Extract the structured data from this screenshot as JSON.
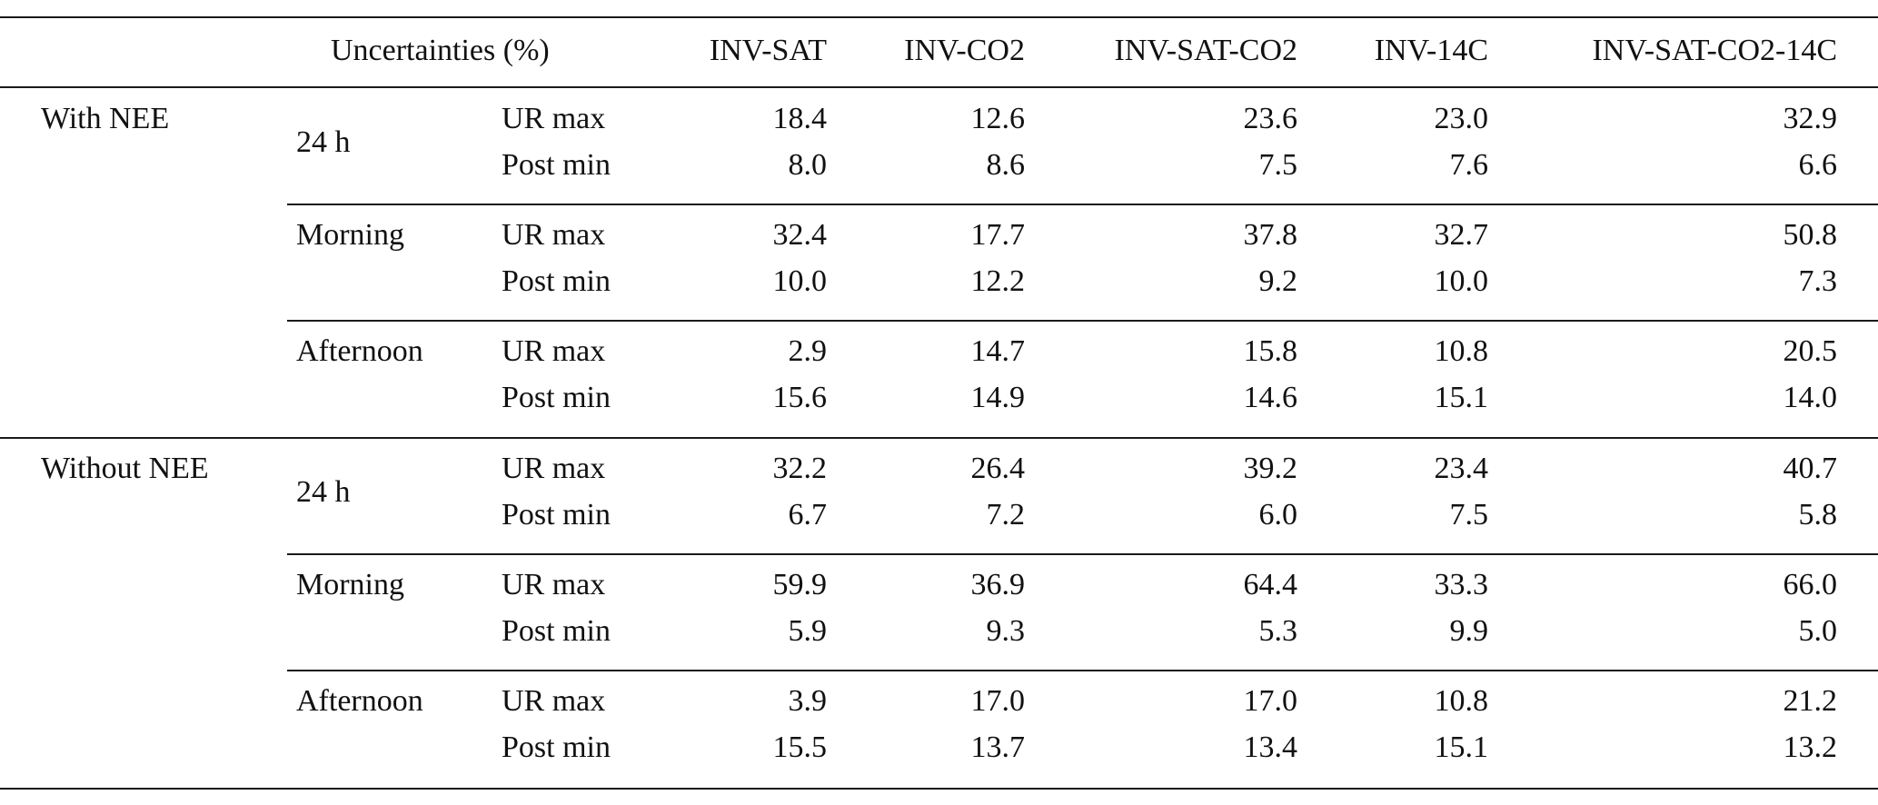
{
  "header": {
    "uncertainties": "Uncertainties (%)",
    "columns": [
      "INV-SAT",
      "INV-CO2",
      "INV-SAT-CO2",
      "INV-14C",
      "INV-SAT-CO2-14C"
    ]
  },
  "groups": [
    {
      "label": "With NEE",
      "periods": [
        {
          "label": "24 h",
          "rows": [
            {
              "metric": "UR max",
              "values": [
                "18.4",
                "12.6",
                "23.6",
                "23.0",
                "32.9"
              ]
            },
            {
              "metric": "Post min",
              "values": [
                "8.0",
                "8.6",
                "7.5",
                "7.6",
                "6.6"
              ]
            }
          ]
        },
        {
          "label": "Morning",
          "rows": [
            {
              "metric": "UR max",
              "values": [
                "32.4",
                "17.7",
                "37.8",
                "32.7",
                "50.8"
              ]
            },
            {
              "metric": "Post min",
              "values": [
                "10.0",
                "12.2",
                "9.2",
                "10.0",
                "7.3"
              ]
            }
          ]
        },
        {
          "label": "Afternoon",
          "rows": [
            {
              "metric": "UR max",
              "values": [
                "2.9",
                "14.7",
                "15.8",
                "10.8",
                "20.5"
              ]
            },
            {
              "metric": "Post min",
              "values": [
                "15.6",
                "14.9",
                "14.6",
                "15.1",
                "14.0"
              ]
            }
          ]
        }
      ]
    },
    {
      "label": "Without NEE",
      "periods": [
        {
          "label": "24 h",
          "rows": [
            {
              "metric": "UR max",
              "values": [
                "32.2",
                "26.4",
                "39.2",
                "23.4",
                "40.7"
              ]
            },
            {
              "metric": "Post min",
              "values": [
                "6.7",
                "7.2",
                "6.0",
                "7.5",
                "5.8"
              ]
            }
          ]
        },
        {
          "label": "Morning",
          "rows": [
            {
              "metric": "UR max",
              "values": [
                "59.9",
                "36.9",
                "64.4",
                "33.3",
                "66.0"
              ]
            },
            {
              "metric": "Post min",
              "values": [
                "5.9",
                "9.3",
                "5.3",
                "9.9",
                "5.0"
              ]
            }
          ]
        },
        {
          "label": "Afternoon",
          "rows": [
            {
              "metric": "UR max",
              "values": [
                "3.9",
                "17.0",
                "17.0",
                "10.8",
                "21.2"
              ]
            },
            {
              "metric": "Post min",
              "values": [
                "15.5",
                "13.7",
                "13.4",
                "15.1",
                "13.2"
              ]
            }
          ]
        }
      ]
    }
  ]
}
